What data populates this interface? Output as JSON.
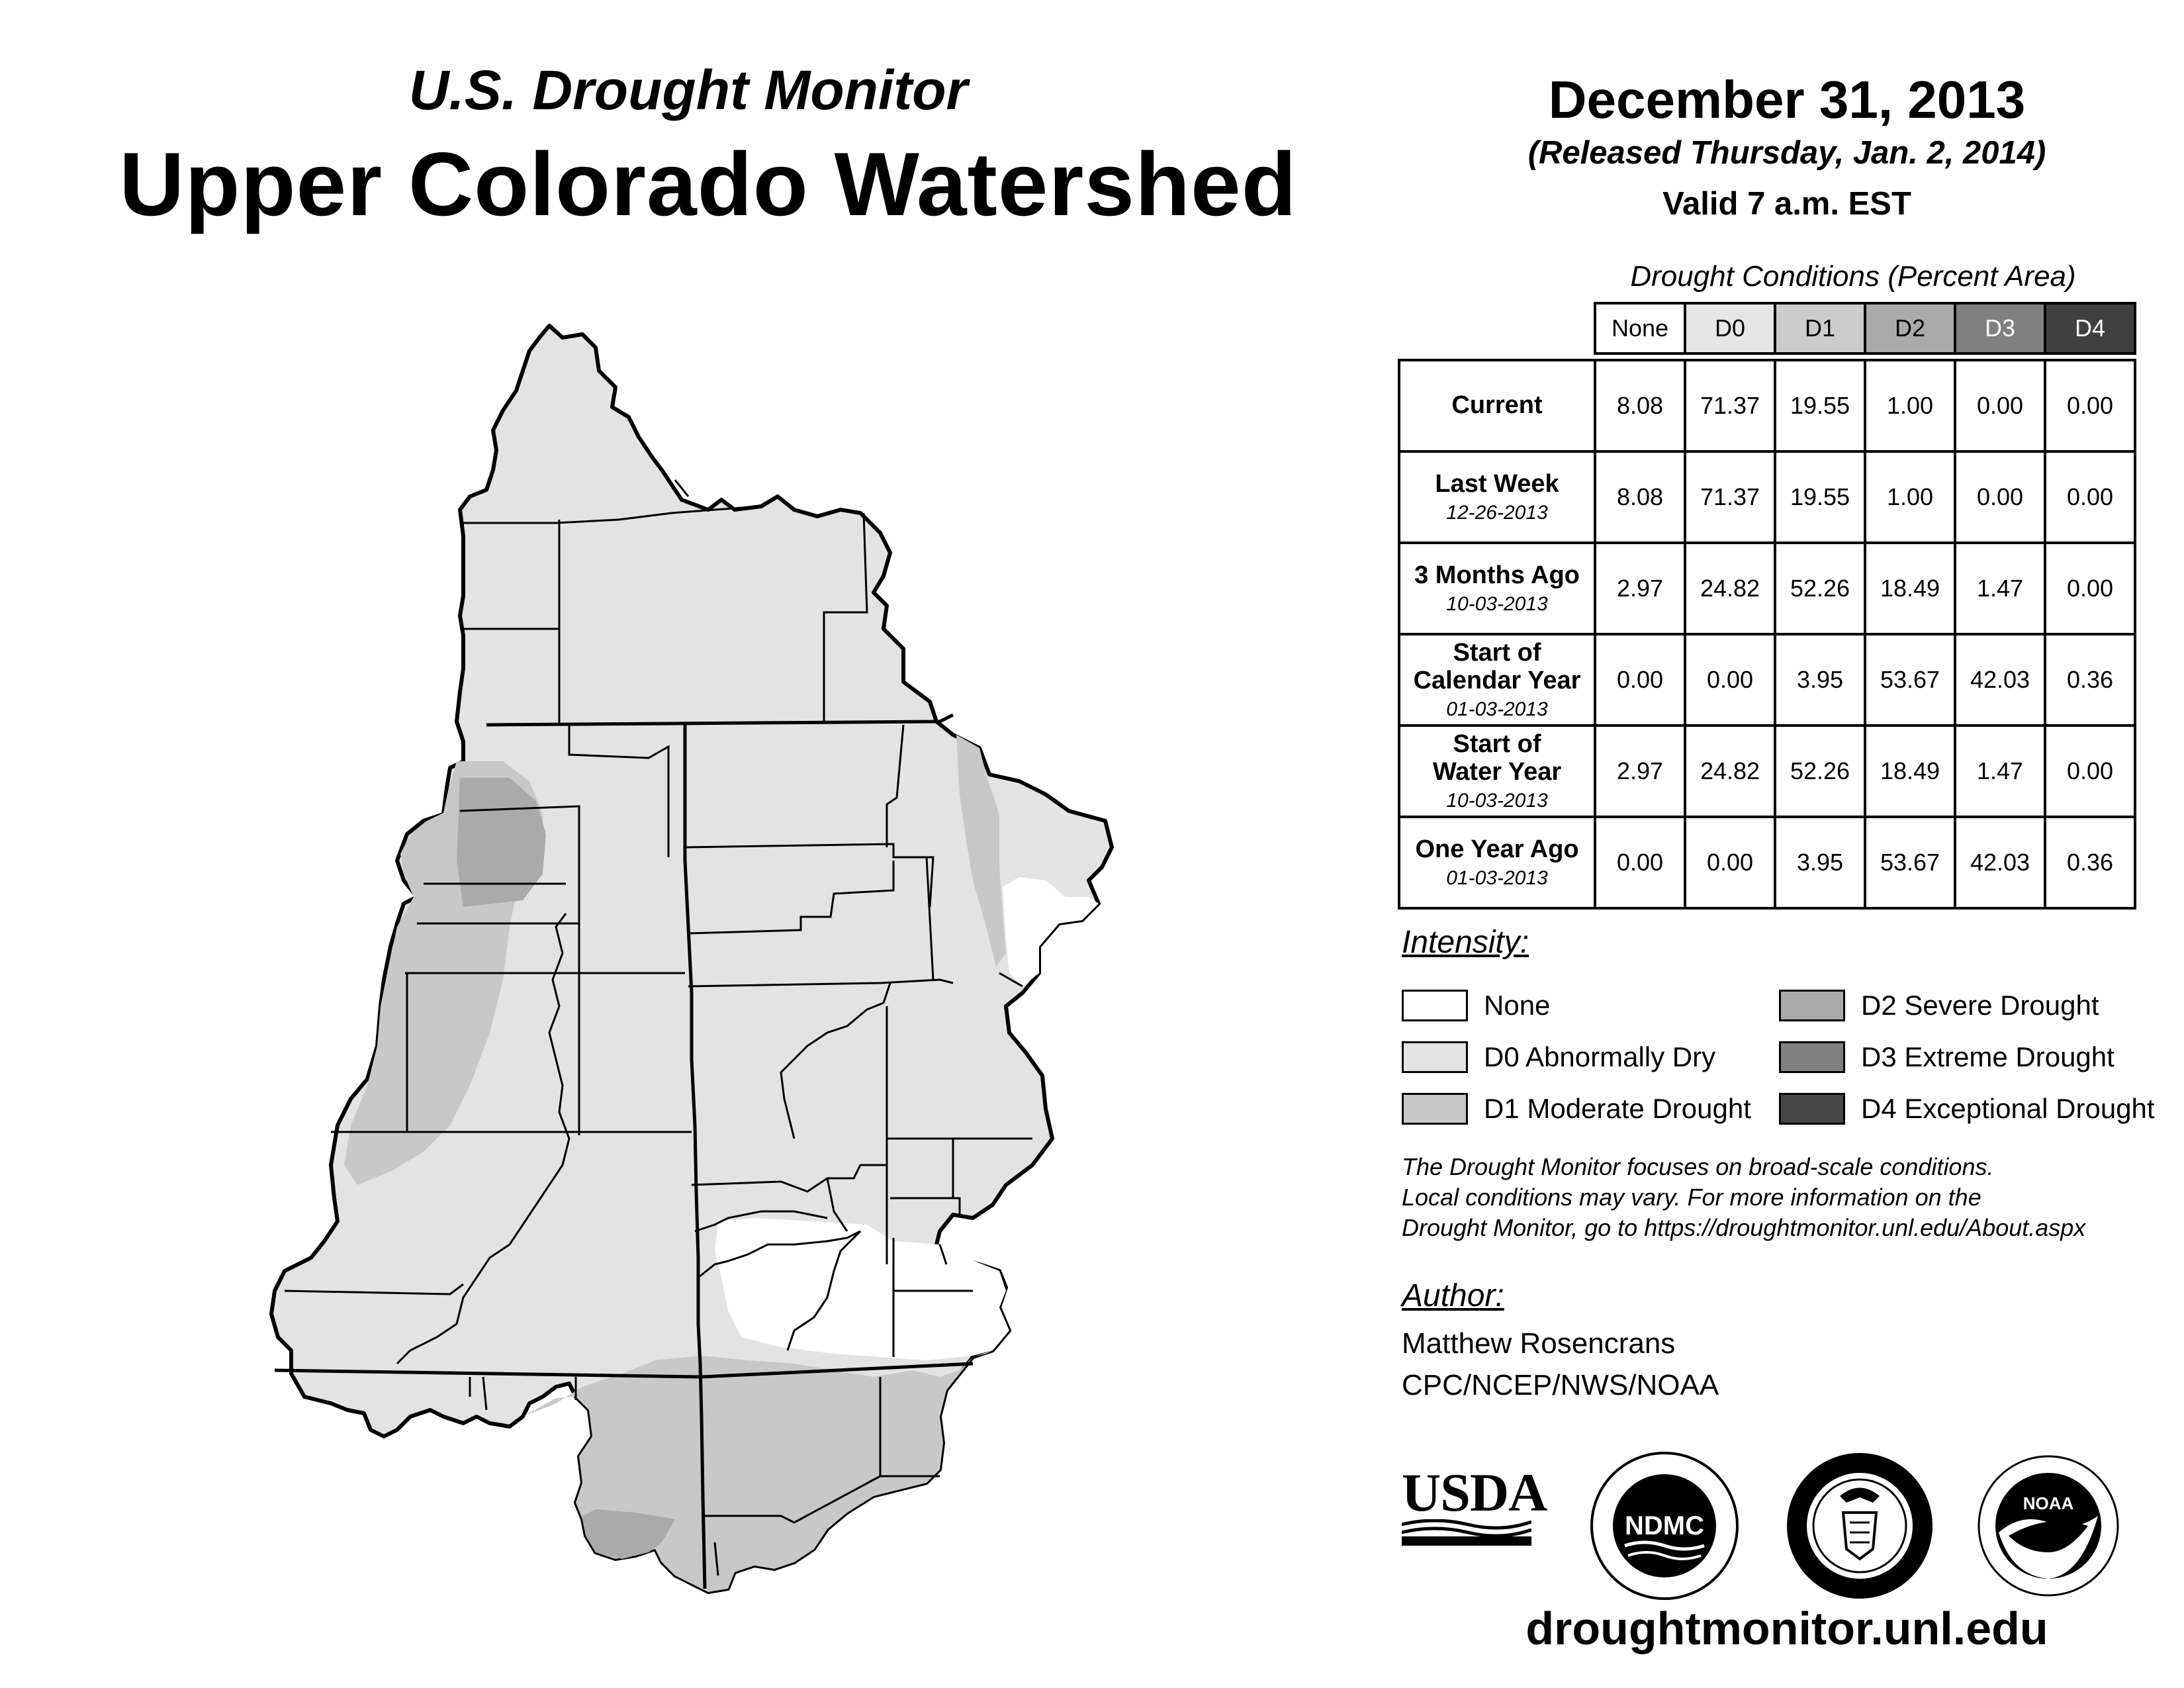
{
  "header": {
    "subtitle": "U.S. Drought Monitor",
    "title": "Upper Colorado Watershed",
    "date": "December 31, 2013",
    "released": "(Released Thursday, Jan. 2, 2014)",
    "valid": "Valid 7 a.m. EST"
  },
  "table": {
    "caption": "Drought Conditions (Percent Area)",
    "columns": [
      "None",
      "D0",
      "D1",
      "D2",
      "D3",
      "D4"
    ],
    "column_colors": [
      "#ffffff",
      "#e6e6e6",
      "#cccccc",
      "#aaaaaa",
      "#808080",
      "#404040"
    ],
    "rows": [
      {
        "label_lines": [
          "Current"
        ],
        "date": "",
        "values": [
          "8.08",
          "71.37",
          "19.55",
          "1.00",
          "0.00",
          "0.00"
        ]
      },
      {
        "label_lines": [
          "Last Week"
        ],
        "date": "12-26-2013",
        "values": [
          "8.08",
          "71.37",
          "19.55",
          "1.00",
          "0.00",
          "0.00"
        ]
      },
      {
        "label_lines": [
          "3 Months Ago"
        ],
        "date": "10-03-2013",
        "values": [
          "2.97",
          "24.82",
          "52.26",
          "18.49",
          "1.47",
          "0.00"
        ]
      },
      {
        "label_lines": [
          "Start of",
          "Calendar Year"
        ],
        "date": "01-03-2013",
        "values": [
          "0.00",
          "0.00",
          "3.95",
          "53.67",
          "42.03",
          "0.36"
        ]
      },
      {
        "label_lines": [
          "Start of",
          "Water Year"
        ],
        "date": "10-03-2013",
        "values": [
          "2.97",
          "24.82",
          "52.26",
          "18.49",
          "1.47",
          "0.00"
        ]
      },
      {
        "label_lines": [
          "One Year Ago"
        ],
        "date": "01-03-2013",
        "values": [
          "0.00",
          "0.00",
          "3.95",
          "53.67",
          "42.03",
          "0.36"
        ]
      }
    ]
  },
  "legend": {
    "heading": "Intensity:",
    "items": [
      {
        "label": "None",
        "color": "#ffffff"
      },
      {
        "label": "D0 Abnormally Dry",
        "color": "#e3e3e3"
      },
      {
        "label": "D1 Moderate Drought",
        "color": "#c8c8c8"
      },
      {
        "label": "D2 Severe Drought",
        "color": "#aaaaaa"
      },
      {
        "label": "D3 Extreme Drought",
        "color": "#808080"
      },
      {
        "label": "D4 Exceptional Drought",
        "color": "#474747"
      }
    ]
  },
  "disclaimer": {
    "line1": "The Drought Monitor focuses on broad-scale conditions.",
    "line2": "Local conditions may vary. For more information on the",
    "line3": "Drought Monitor, go to https://droughtmonitor.unl.edu/About.aspx"
  },
  "author": {
    "heading": "Author:",
    "name": "Matthew Rosencrans",
    "org": "CPC/NCEP/NWS/NOAA"
  },
  "logos": {
    "usda": "USDA",
    "ndmc": "NDMC",
    "noaa": "NOAA"
  },
  "website": "droughtmonitor.unl.edu",
  "map": {
    "region": "Upper Colorado Watershed",
    "colors": {
      "d0": "#e3e3e3",
      "d1": "#c8c8c8",
      "d2": "#aaaaaa",
      "none": "#ffffff"
    }
  }
}
